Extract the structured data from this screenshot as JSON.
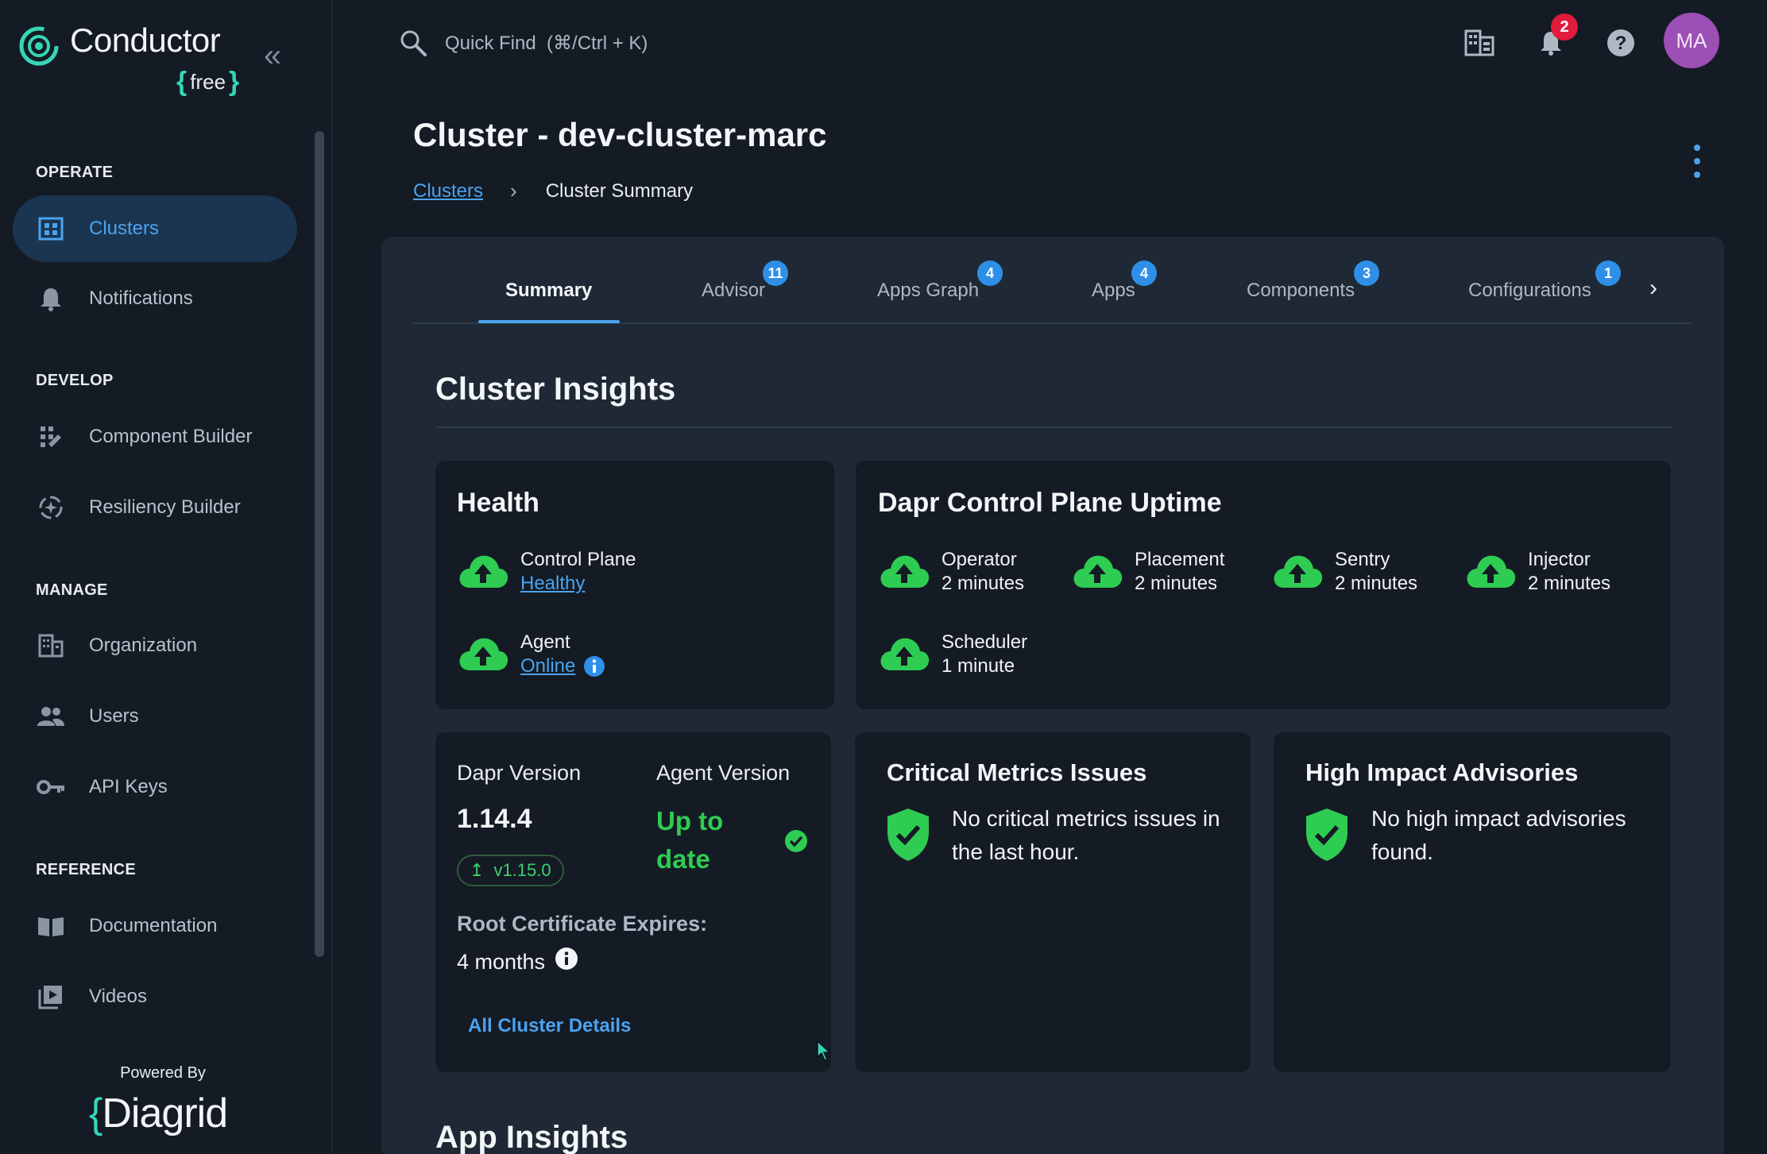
{
  "brand": {
    "name": "Conductor",
    "edition": "free",
    "powered_by": "Powered By",
    "vendor": "Diagrid"
  },
  "sidebar": {
    "sections": [
      {
        "title": "OPERATE",
        "items": [
          {
            "label": "Clusters",
            "icon": "grid-icon",
            "active": true
          },
          {
            "label": "Notifications",
            "icon": "bell-icon"
          }
        ]
      },
      {
        "title": "DEVELOP",
        "items": [
          {
            "label": "Component Builder",
            "icon": "component-builder-icon"
          },
          {
            "label": "Resiliency Builder",
            "icon": "resiliency-icon"
          }
        ]
      },
      {
        "title": "MANAGE",
        "items": [
          {
            "label": "Organization",
            "icon": "building-icon"
          },
          {
            "label": "Users",
            "icon": "users-icon"
          },
          {
            "label": "API Keys",
            "icon": "key-icon"
          }
        ]
      },
      {
        "title": "REFERENCE",
        "items": [
          {
            "label": "Documentation",
            "icon": "book-icon"
          },
          {
            "label": "Videos",
            "icon": "video-icon"
          }
        ]
      }
    ]
  },
  "topbar": {
    "search_placeholder": "Quick Find  (⌘/Ctrl + K)",
    "notification_count": "2",
    "avatar_initials": "MA"
  },
  "page": {
    "title": "Cluster - dev-cluster-marc",
    "breadcrumb": {
      "parent": "Clusters",
      "current": "Cluster Summary"
    }
  },
  "tabs": [
    {
      "label": "Summary",
      "badge": ""
    },
    {
      "label": "Advisor",
      "badge": "11"
    },
    {
      "label": "Apps Graph",
      "badge": "4"
    },
    {
      "label": "Apps",
      "badge": "4"
    },
    {
      "label": "Components",
      "badge": "3"
    },
    {
      "label": "Configurations",
      "badge": "1"
    }
  ],
  "insights": {
    "title": "Cluster Insights",
    "health": {
      "title": "Health",
      "control_plane": {
        "label": "Control Plane",
        "value": "Healthy"
      },
      "agent": {
        "label": "Agent",
        "value": "Online"
      }
    },
    "uptime": {
      "title": "Dapr Control Plane Uptime",
      "items": [
        {
          "label": "Operator",
          "value": "2 minutes"
        },
        {
          "label": "Placement",
          "value": "2 minutes"
        },
        {
          "label": "Sentry",
          "value": "2 minutes"
        },
        {
          "label": "Injector",
          "value": "2 minutes"
        },
        {
          "label": "Scheduler",
          "value": "1 minute"
        }
      ]
    },
    "versions": {
      "dapr_label": "Dapr Version",
      "dapr_value": "1.14.4",
      "upgrade": "v1.15.0",
      "agent_label": "Agent Version",
      "agent_value": "Up to date",
      "cert_label": "Root Certificate Expires:",
      "cert_value": "4 months",
      "details_link": "All Cluster Details"
    },
    "critical": {
      "title": "Critical Metrics Issues",
      "message": "No critical metrics issues in the last hour."
    },
    "advisories": {
      "title": "High Impact Advisories",
      "message": "No high impact advisories found."
    }
  },
  "app_insights_title": "App Insights",
  "colors": {
    "accent": "#4aa3f0",
    "success": "#2ecc52",
    "badge": "#2f8fe8",
    "alert": "#e01b3c"
  }
}
